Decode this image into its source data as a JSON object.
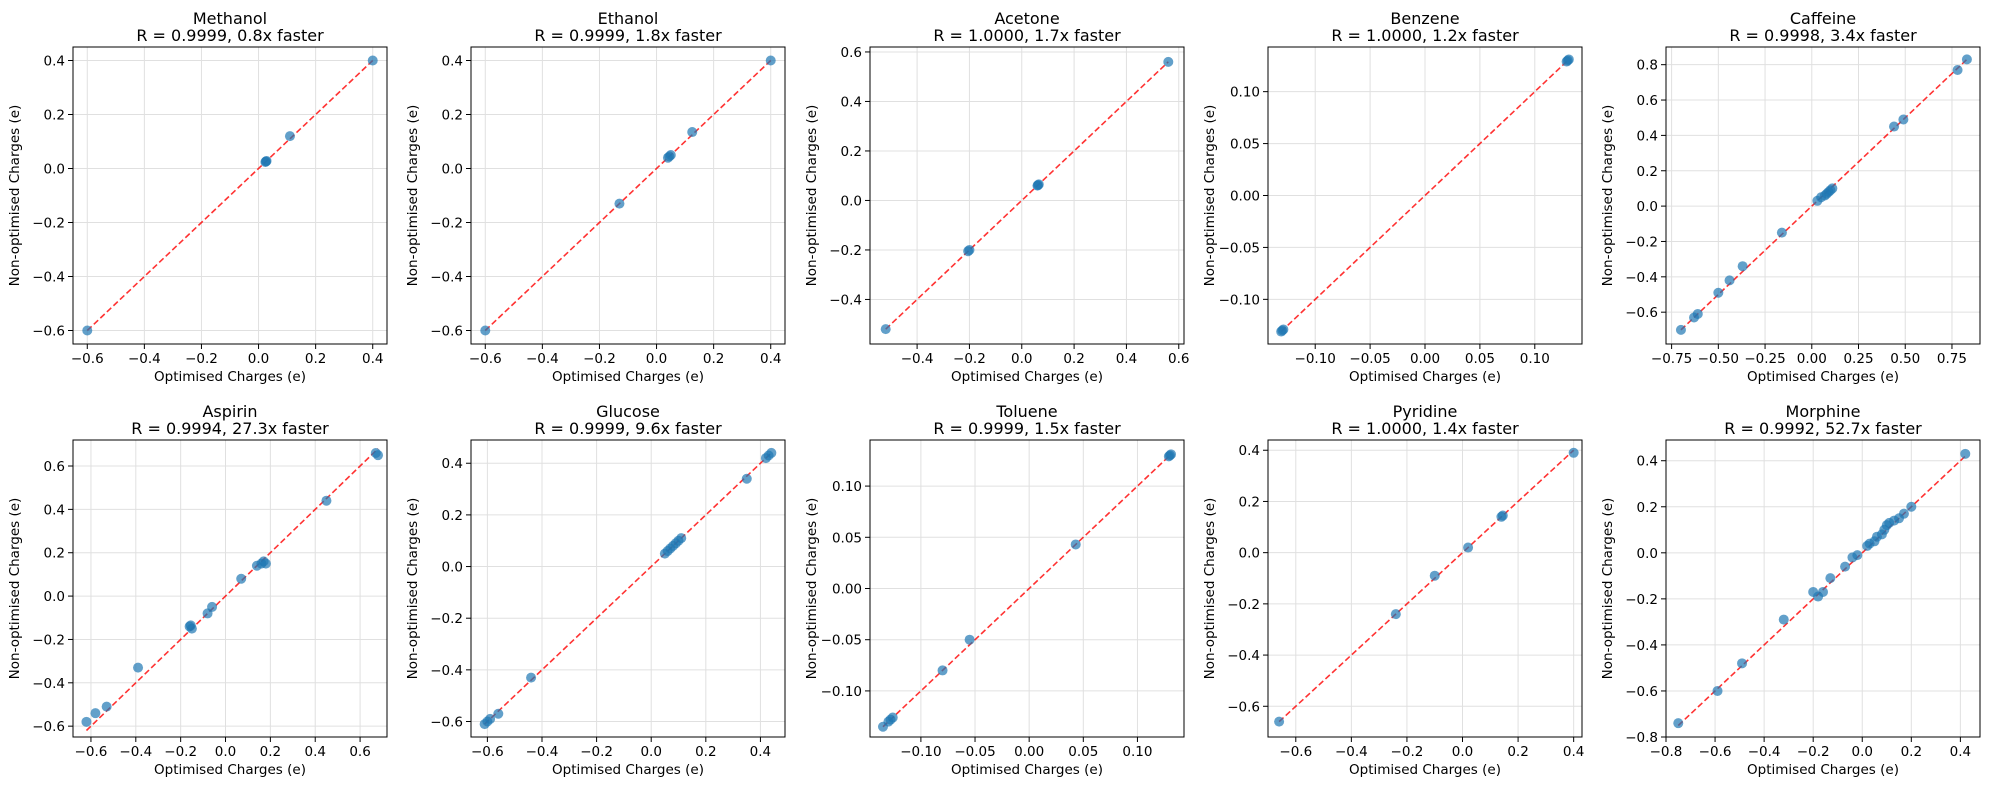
{
  "chart_data": [
    {
      "type": "scatter",
      "title_line1": "Methanol",
      "title_line2": "R = 0.9999, 0.8x faster",
      "xlabel": "Optimised Charges (e)",
      "ylabel": "Non-optimised Charges (e)",
      "xlim": [
        -0.65,
        0.45
      ],
      "ylim": [
        -0.65,
        0.45
      ],
      "xticks": [
        -0.6,
        -0.4,
        -0.2,
        0.0,
        0.2,
        0.4
      ],
      "yticks": [
        -0.6,
        -0.4,
        -0.2,
        0.0,
        0.2,
        0.4
      ],
      "grid": true,
      "points": [
        [
          -0.6,
          -0.6
        ],
        [
          0.024,
          0.024
        ],
        [
          0.028,
          0.028
        ],
        [
          0.026,
          0.026
        ],
        [
          0.11,
          0.12
        ],
        [
          0.4,
          0.4
        ]
      ]
    },
    {
      "type": "scatter",
      "title_line1": "Ethanol",
      "title_line2": "R = 0.9999, 1.8x faster",
      "xlabel": "Optimised Charges (e)",
      "ylabel": "Non-optimised Charges (e)",
      "xlim": [
        -0.65,
        0.45
      ],
      "ylim": [
        -0.65,
        0.45
      ],
      "xticks": [
        -0.6,
        -0.4,
        -0.2,
        0.0,
        0.2,
        0.4
      ],
      "yticks": [
        -0.6,
        -0.4,
        -0.2,
        0.0,
        0.2,
        0.4
      ],
      "grid": true,
      "points": [
        [
          -0.6,
          -0.6
        ],
        [
          -0.13,
          -0.13
        ],
        [
          0.04,
          0.04
        ],
        [
          0.045,
          0.045
        ],
        [
          0.05,
          0.05
        ],
        [
          0.125,
          0.135
        ],
        [
          0.4,
          0.4
        ]
      ]
    },
    {
      "type": "scatter",
      "title_line1": "Acetone",
      "title_line2": "R = 1.0000, 1.7x faster",
      "xlabel": "Optimised Charges (e)",
      "ylabel": "Non-optimised Charges (e)",
      "xlim": [
        -0.58,
        0.62
      ],
      "ylim": [
        -0.58,
        0.62
      ],
      "xticks": [
        -0.4,
        -0.2,
        0.0,
        0.2,
        0.4,
        0.6
      ],
      "yticks": [
        -0.4,
        -0.2,
        0.0,
        0.2,
        0.4,
        0.6
      ],
      "grid": true,
      "points": [
        [
          -0.52,
          -0.52
        ],
        [
          -0.2,
          -0.2
        ],
        [
          -0.205,
          -0.205
        ],
        [
          0.06,
          0.06
        ],
        [
          0.065,
          0.065
        ],
        [
          0.062,
          0.062
        ],
        [
          0.56,
          0.56
        ]
      ]
    },
    {
      "type": "scatter",
      "title_line1": "Benzene",
      "title_line2": "R = 1.0000, 1.2x faster",
      "xlabel": "Optimised Charges (e)",
      "ylabel": "Non-optimised Charges (e)",
      "xlim": [
        -0.143,
        0.143
      ],
      "ylim": [
        -0.143,
        0.143
      ],
      "xticks": [
        -0.1,
        -0.05,
        0.0,
        0.05,
        0.1
      ],
      "yticks": [
        -0.1,
        -0.05,
        0.0,
        0.05,
        0.1
      ],
      "grid": true,
      "points": [
        [
          -0.13,
          -0.13
        ],
        [
          -0.129,
          -0.129
        ],
        [
          -0.131,
          -0.131
        ],
        [
          0.13,
          0.13
        ],
        [
          0.129,
          0.129
        ],
        [
          0.131,
          0.131
        ]
      ]
    },
    {
      "type": "scatter",
      "title_line1": "Caffeine",
      "title_line2": "R = 0.9998, 3.4x faster",
      "xlabel": "Optimised Charges (e)",
      "ylabel": "Non-optimised Charges (e)",
      "xlim": [
        -0.78,
        0.9
      ],
      "ylim": [
        -0.78,
        0.9
      ],
      "xticks": [
        -0.75,
        -0.5,
        -0.25,
        0.0,
        0.25,
        0.5,
        0.75
      ],
      "yticks": [
        -0.6,
        -0.4,
        -0.2,
        0.0,
        0.2,
        0.4,
        0.6,
        0.8
      ],
      "grid": true,
      "points": [
        [
          -0.7,
          -0.7
        ],
        [
          -0.63,
          -0.63
        ],
        [
          -0.61,
          -0.61
        ],
        [
          -0.5,
          -0.49
        ],
        [
          -0.44,
          -0.42
        ],
        [
          -0.37,
          -0.34
        ],
        [
          -0.16,
          -0.15
        ],
        [
          0.03,
          0.03
        ],
        [
          0.05,
          0.05
        ],
        [
          0.07,
          0.06
        ],
        [
          0.08,
          0.07
        ],
        [
          0.09,
          0.08
        ],
        [
          0.1,
          0.09
        ],
        [
          0.11,
          0.1
        ],
        [
          0.44,
          0.45
        ],
        [
          0.49,
          0.49
        ],
        [
          0.78,
          0.77
        ],
        [
          0.83,
          0.83
        ]
      ]
    },
    {
      "type": "scatter",
      "title_line1": "Aspirin",
      "title_line2": "R = 0.9994, 27.3x faster",
      "xlabel": "Optimised Charges (e)",
      "ylabel": "Non-optimised Charges (e)",
      "xlim": [
        -0.68,
        0.72
      ],
      "ylim": [
        -0.65,
        0.72
      ],
      "xticks": [
        -0.6,
        -0.4,
        -0.2,
        0.0,
        0.2,
        0.4,
        0.6
      ],
      "yticks": [
        -0.6,
        -0.4,
        -0.2,
        0.0,
        0.2,
        0.4,
        0.6
      ],
      "grid": true,
      "points": [
        [
          -0.62,
          -0.58
        ],
        [
          -0.58,
          -0.54
        ],
        [
          -0.53,
          -0.51
        ],
        [
          -0.39,
          -0.33
        ],
        [
          -0.16,
          -0.14
        ],
        [
          -0.155,
          -0.135
        ],
        [
          -0.15,
          -0.15
        ],
        [
          -0.08,
          -0.08
        ],
        [
          -0.06,
          -0.05
        ],
        [
          0.07,
          0.08
        ],
        [
          0.14,
          0.14
        ],
        [
          0.16,
          0.15
        ],
        [
          0.17,
          0.16
        ],
        [
          0.18,
          0.15
        ],
        [
          0.45,
          0.44
        ],
        [
          0.68,
          0.65
        ],
        [
          0.67,
          0.66
        ]
      ]
    },
    {
      "type": "scatter",
      "title_line1": "Glucose",
      "title_line2": "R = 0.9999, 9.6x faster",
      "xlabel": "Optimised Charges (e)",
      "ylabel": "Non-optimised Charges (e)",
      "xlim": [
        -0.66,
        0.49
      ],
      "ylim": [
        -0.66,
        0.49
      ],
      "xticks": [
        -0.6,
        -0.4,
        -0.2,
        0.0,
        0.2,
        0.4
      ],
      "yticks": [
        -0.6,
        -0.4,
        -0.2,
        0.0,
        0.2,
        0.4
      ],
      "grid": true,
      "points": [
        [
          -0.61,
          -0.61
        ],
        [
          -0.6,
          -0.6
        ],
        [
          -0.59,
          -0.59
        ],
        [
          -0.56,
          -0.57
        ],
        [
          -0.44,
          -0.43
        ],
        [
          0.05,
          0.05
        ],
        [
          0.06,
          0.06
        ],
        [
          0.07,
          0.07
        ],
        [
          0.08,
          0.08
        ],
        [
          0.09,
          0.09
        ],
        [
          0.1,
          0.1
        ],
        [
          0.11,
          0.11
        ],
        [
          0.35,
          0.34
        ],
        [
          0.42,
          0.42
        ],
        [
          0.43,
          0.43
        ],
        [
          0.44,
          0.44
        ]
      ]
    },
    {
      "type": "scatter",
      "title_line1": "Toluene",
      "title_line2": "R = 0.9999, 1.5x faster",
      "xlabel": "Optimised Charges (e)",
      "ylabel": "Non-optimised Charges (e)",
      "xlim": [
        -0.147,
        0.143
      ],
      "ylim": [
        -0.145,
        0.145
      ],
      "xticks": [
        -0.1,
        -0.05,
        0.0,
        0.05,
        0.1
      ],
      "yticks": [
        -0.1,
        -0.05,
        0.0,
        0.05,
        0.1
      ],
      "grid": true,
      "points": [
        [
          -0.135,
          -0.135
        ],
        [
          -0.13,
          -0.13
        ],
        [
          -0.128,
          -0.128
        ],
        [
          -0.126,
          -0.126
        ],
        [
          -0.08,
          -0.08
        ],
        [
          -0.055,
          -0.05
        ],
        [
          0.043,
          0.043
        ],
        [
          0.13,
          0.13
        ],
        [
          0.129,
          0.129
        ],
        [
          0.131,
          0.131
        ]
      ]
    },
    {
      "type": "scatter",
      "title_line1": "Pyridine",
      "title_line2": "R = 1.0000, 1.4x faster",
      "xlabel": "Optimised Charges (e)",
      "ylabel": "Non-optimised Charges (e)",
      "xlim": [
        -0.7,
        0.43
      ],
      "ylim": [
        -0.72,
        0.44
      ],
      "xticks": [
        -0.6,
        -0.4,
        -0.2,
        0.0,
        0.2,
        0.4
      ],
      "yticks": [
        -0.6,
        -0.4,
        -0.2,
        0.0,
        0.2,
        0.4
      ],
      "grid": true,
      "points": [
        [
          -0.66,
          -0.66
        ],
        [
          -0.24,
          -0.24
        ],
        [
          -0.1,
          -0.09
        ],
        [
          0.02,
          0.02
        ],
        [
          0.14,
          0.14
        ],
        [
          0.145,
          0.145
        ],
        [
          0.4,
          0.39
        ]
      ]
    },
    {
      "type": "scatter",
      "title_line1": "Morphine",
      "title_line2": "R = 0.9992, 52.7x faster",
      "xlabel": "Optimised Charges (e)",
      "ylabel": "Non-optimised Charges (e)",
      "xlim": [
        -0.8,
        0.48
      ],
      "ylim": [
        -0.8,
        0.49
      ],
      "xticks": [
        -0.8,
        -0.6,
        -0.4,
        -0.2,
        0.0,
        0.2,
        0.4
      ],
      "yticks": [
        -0.8,
        -0.6,
        -0.4,
        -0.2,
        0.0,
        0.2,
        0.4
      ],
      "grid": true,
      "points": [
        [
          -0.75,
          -0.74
        ],
        [
          -0.59,
          -0.6
        ],
        [
          -0.49,
          -0.48
        ],
        [
          -0.32,
          -0.29
        ],
        [
          -0.2,
          -0.17
        ],
        [
          -0.18,
          -0.19
        ],
        [
          -0.16,
          -0.17
        ],
        [
          -0.13,
          -0.11
        ],
        [
          -0.07,
          -0.06
        ],
        [
          -0.04,
          -0.02
        ],
        [
          -0.02,
          -0.01
        ],
        [
          0.02,
          0.03
        ],
        [
          0.03,
          0.04
        ],
        [
          0.05,
          0.05
        ],
        [
          0.06,
          0.07
        ],
        [
          0.08,
          0.08
        ],
        [
          0.09,
          0.1
        ],
        [
          0.1,
          0.12
        ],
        [
          0.11,
          0.13
        ],
        [
          0.13,
          0.14
        ],
        [
          0.15,
          0.15
        ],
        [
          0.17,
          0.17
        ],
        [
          0.2,
          0.2
        ],
        [
          0.42,
          0.43
        ]
      ]
    }
  ],
  "style": {
    "point_color": "#1f77b4",
    "line_color": "#ff0000",
    "grid_color": "#e0e0e0"
  }
}
